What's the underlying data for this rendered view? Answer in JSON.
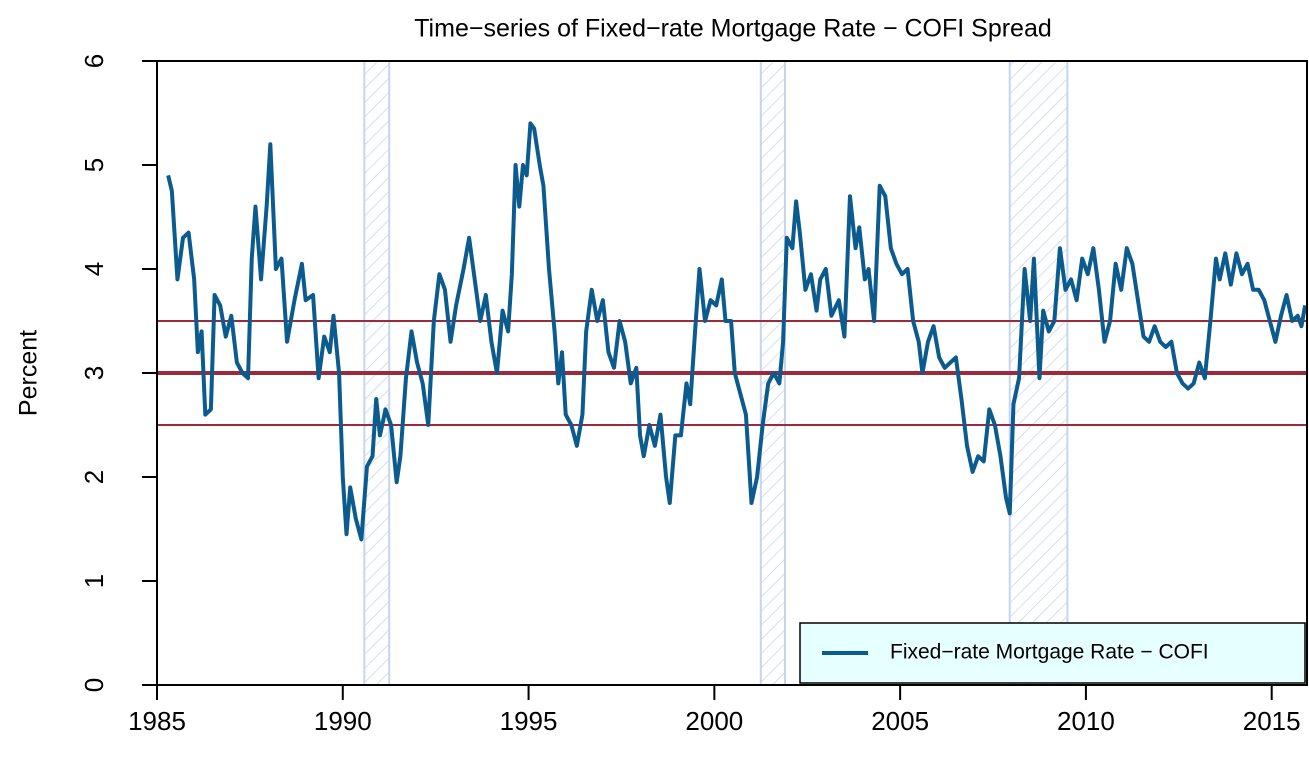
{
  "chart_data": {
    "type": "line",
    "title": "Time−series of Fixed−rate Mortgage Rate − COFI Spread",
    "y_label": "Percent",
    "xlim": [
      1985,
      2015.95
    ],
    "xticks": [
      1985,
      1990,
      1995,
      2000,
      2005,
      2010,
      2015
    ],
    "ylim": [
      0,
      6
    ],
    "yticks": [
      0,
      1,
      2,
      3,
      4,
      5,
      6
    ],
    "legend_position": "bottom-right",
    "legend_fill": "#e6ffff",
    "shaded_periods": [
      {
        "start": 1990.58,
        "end": 1991.25
      },
      {
        "start": 2001.25,
        "end": 2001.9
      },
      {
        "start": 2007.95,
        "end": 2009.5
      }
    ],
    "shade_color": "#c6d5ef",
    "reference_lines": [
      {
        "value": 3,
        "color": "#9b2a3a",
        "thick": true
      },
      {
        "value": 2.5,
        "color": "#9b2a3a",
        "thick": false
      },
      {
        "value": 3.5,
        "color": "#9b2a3a",
        "thick": false
      }
    ],
    "x": [
      1985.3,
      1985.4,
      1985.55,
      1985.7,
      1985.85,
      1986.0,
      1986.1,
      1986.2,
      1986.3,
      1986.45,
      1986.55,
      1986.7,
      1986.85,
      1987.0,
      1987.15,
      1987.3,
      1987.45,
      1987.55,
      1987.65,
      1987.8,
      1987.95,
      1988.05,
      1988.2,
      1988.35,
      1988.5,
      1988.7,
      1988.9,
      1989.0,
      1989.2,
      1989.35,
      1989.5,
      1989.65,
      1989.75,
      1989.9,
      1990.0,
      1990.1,
      1990.2,
      1990.35,
      1990.5,
      1990.65,
      1990.8,
      1990.9,
      1991.0,
      1991.15,
      1991.3,
      1991.45,
      1991.55,
      1991.7,
      1991.85,
      1992.0,
      1992.15,
      1992.3,
      1992.45,
      1992.6,
      1992.75,
      1992.9,
      1993.05,
      1993.25,
      1993.4,
      1993.55,
      1993.7,
      1993.85,
      1994.0,
      1994.15,
      1994.3,
      1994.45,
      1994.55,
      1994.65,
      1994.75,
      1994.85,
      1994.95,
      1995.05,
      1995.15,
      1995.3,
      1995.4,
      1995.55,
      1995.7,
      1995.8,
      1995.9,
      1996.0,
      1996.15,
      1996.3,
      1996.45,
      1996.55,
      1996.7,
      1996.85,
      1997.0,
      1997.15,
      1997.3,
      1997.45,
      1997.6,
      1997.75,
      1997.9,
      1998.0,
      1998.1,
      1998.25,
      1998.4,
      1998.55,
      1998.7,
      1998.8,
      1998.95,
      1999.1,
      1999.25,
      1999.35,
      1999.5,
      1999.6,
      1999.75,
      1999.9,
      2000.05,
      2000.2,
      2000.3,
      2000.45,
      2000.55,
      2000.7,
      2000.85,
      2001.0,
      2001.15,
      2001.3,
      2001.45,
      2001.6,
      2001.75,
      2001.85,
      2001.95,
      2002.1,
      2002.2,
      2002.3,
      2002.45,
      2002.6,
      2002.75,
      2002.85,
      2003.0,
      2003.15,
      2003.35,
      2003.5,
      2003.65,
      2003.8,
      2003.9,
      2004.05,
      2004.15,
      2004.3,
      2004.45,
      2004.6,
      2004.75,
      2004.9,
      2005.05,
      2005.2,
      2005.35,
      2005.5,
      2005.6,
      2005.75,
      2005.9,
      2006.05,
      2006.2,
      2006.35,
      2006.5,
      2006.65,
      2006.8,
      2006.95,
      2007.1,
      2007.25,
      2007.4,
      2007.55,
      2007.7,
      2007.85,
      2007.95,
      2008.05,
      2008.2,
      2008.35,
      2008.5,
      2008.6,
      2008.75,
      2008.85,
      2009.0,
      2009.15,
      2009.3,
      2009.45,
      2009.6,
      2009.75,
      2009.9,
      2010.05,
      2010.2,
      2010.35,
      2010.5,
      2010.65,
      2010.8,
      2010.95,
      2011.1,
      2011.25,
      2011.4,
      2011.55,
      2011.7,
      2011.85,
      2012.0,
      2012.15,
      2012.3,
      2012.45,
      2012.6,
      2012.75,
      2012.9,
      2013.05,
      2013.2,
      2013.35,
      2013.5,
      2013.6,
      2013.75,
      2013.9,
      2014.05,
      2014.2,
      2014.35,
      2014.5,
      2014.65,
      2014.8,
      2014.95,
      2015.1,
      2015.25,
      2015.4,
      2015.55,
      2015.7,
      2015.8,
      2015.9
    ],
    "series": [
      {
        "name": "Fixed−rate Mortgage Rate − COFI",
        "color": "#0b5b8f",
        "values": [
          4.9,
          4.75,
          3.9,
          4.3,
          4.35,
          3.9,
          3.2,
          3.4,
          2.6,
          2.65,
          3.75,
          3.65,
          3.35,
          3.55,
          3.1,
          3.0,
          2.95,
          4.1,
          4.6,
          3.9,
          4.6,
          5.2,
          4.0,
          4.1,
          3.3,
          3.7,
          4.05,
          3.7,
          3.75,
          2.95,
          3.35,
          3.2,
          3.55,
          3.0,
          2.0,
          1.45,
          1.9,
          1.6,
          1.4,
          2.1,
          2.2,
          2.75,
          2.4,
          2.65,
          2.5,
          1.95,
          2.2,
          2.95,
          3.4,
          3.1,
          2.9,
          2.5,
          3.5,
          3.95,
          3.8,
          3.3,
          3.65,
          4.0,
          4.3,
          3.9,
          3.5,
          3.75,
          3.3,
          3.0,
          3.6,
          3.4,
          3.95,
          5.0,
          4.6,
          5.0,
          4.9,
          5.4,
          5.35,
          5.0,
          4.8,
          4.0,
          3.4,
          2.9,
          3.2,
          2.6,
          2.5,
          2.3,
          2.6,
          3.4,
          3.8,
          3.5,
          3.7,
          3.2,
          3.05,
          3.5,
          3.3,
          2.9,
          3.05,
          2.4,
          2.2,
          2.5,
          2.3,
          2.6,
          2.0,
          1.75,
          2.4,
          2.4,
          2.9,
          2.7,
          3.5,
          4.0,
          3.5,
          3.7,
          3.65,
          3.9,
          3.5,
          3.5,
          3.0,
          2.8,
          2.6,
          1.75,
          2.0,
          2.5,
          2.9,
          3.0,
          2.9,
          3.3,
          4.3,
          4.2,
          4.65,
          4.35,
          3.8,
          3.95,
          3.6,
          3.9,
          4.0,
          3.55,
          3.7,
          3.35,
          4.7,
          4.2,
          4.4,
          3.9,
          4.0,
          3.5,
          4.8,
          4.7,
          4.2,
          4.05,
          3.95,
          4.0,
          3.5,
          3.3,
          3.0,
          3.3,
          3.45,
          3.15,
          3.05,
          3.1,
          3.15,
          2.75,
          2.3,
          2.05,
          2.2,
          2.15,
          2.65,
          2.5,
          2.2,
          1.8,
          1.65,
          2.7,
          2.95,
          4.0,
          3.5,
          4.1,
          2.95,
          3.6,
          3.4,
          3.5,
          4.2,
          3.8,
          3.9,
          3.7,
          4.1,
          3.95,
          4.2,
          3.8,
          3.3,
          3.5,
          4.05,
          3.8,
          4.2,
          4.05,
          3.7,
          3.35,
          3.3,
          3.45,
          3.3,
          3.25,
          3.3,
          3.0,
          2.9,
          2.85,
          2.9,
          3.1,
          2.95,
          3.5,
          4.1,
          3.9,
          4.15,
          3.85,
          4.15,
          3.95,
          4.05,
          3.8,
          3.8,
          3.7,
          3.5,
          3.3,
          3.55,
          3.75,
          3.5,
          3.55,
          3.45,
          3.65
        ]
      }
    ]
  }
}
